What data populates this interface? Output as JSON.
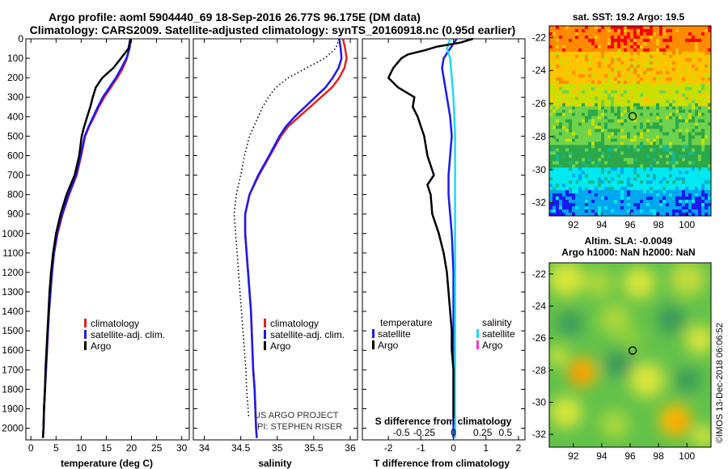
{
  "header": {
    "line1": "Argo profile: aoml 5904440_69 18-Sep-2016 26.77S 96.175E (DM data)",
    "line2": "Climatology: CARS2009. Satellite-adjusted climatology: synTS_20160918.nc (0.95d earlier)"
  },
  "depth_axis": {
    "ticks": [
      0,
      100,
      200,
      300,
      400,
      500,
      600,
      700,
      800,
      900,
      1000,
      1100,
      1200,
      1300,
      1400,
      1500,
      1600,
      1700,
      1800,
      1900,
      2000
    ],
    "range": [
      0,
      2060
    ]
  },
  "colors": {
    "climatology": "#e8201e",
    "satellite": "#1a1af0",
    "argo": "#000000",
    "satellite_sal": "#22d8f0",
    "argo_sal": "#ff33cc"
  },
  "chart_data": [
    {
      "type": "line",
      "name": "temperature",
      "xlabel": "temperature (deg C)",
      "ylabel": "",
      "xlim": [
        -1,
        31.5
      ],
      "ylim": [
        2060,
        0
      ],
      "xticks": [
        0,
        5,
        10,
        15,
        20,
        25,
        30
      ],
      "legend": [
        "climatology",
        "satellite-adj. clim.",
        "Argo"
      ],
      "series": [
        {
          "name": "climatology",
          "role": "climatology",
          "points": [
            [
              19.7,
              0
            ],
            [
              19.6,
              50
            ],
            [
              19.1,
              100
            ],
            [
              18.3,
              150
            ],
            [
              17.2,
              200
            ],
            [
              15.9,
              250
            ],
            [
              14.6,
              300
            ],
            [
              13.5,
              350
            ],
            [
              12.6,
              400
            ],
            [
              11.6,
              450
            ],
            [
              10.8,
              500
            ],
            [
              10.0,
              600
            ],
            [
              9.1,
              700
            ],
            [
              7.6,
              800
            ],
            [
              6.3,
              900
            ],
            [
              5.3,
              1000
            ],
            [
              4.6,
              1100
            ],
            [
              4.2,
              1200
            ],
            [
              3.9,
              1300
            ],
            [
              3.6,
              1400
            ],
            [
              3.4,
              1500
            ],
            [
              3.2,
              1600
            ],
            [
              3.0,
              1700
            ],
            [
              2.8,
              1800
            ],
            [
              2.6,
              1900
            ],
            [
              2.5,
              2000
            ],
            [
              2.4,
              2050
            ]
          ]
        },
        {
          "name": "satellite-adj. clim.",
          "role": "satellite",
          "points": [
            [
              19.9,
              0
            ],
            [
              19.6,
              50
            ],
            [
              19.0,
              100
            ],
            [
              18.0,
              150
            ],
            [
              16.9,
              200
            ],
            [
              15.6,
              250
            ],
            [
              14.3,
              300
            ],
            [
              13.3,
              350
            ],
            [
              12.4,
              400
            ],
            [
              11.5,
              450
            ],
            [
              10.7,
              500
            ],
            [
              9.9,
              600
            ],
            [
              9.0,
              700
            ],
            [
              7.5,
              800
            ],
            [
              6.2,
              900
            ],
            [
              5.2,
              1000
            ],
            [
              4.6,
              1100
            ],
            [
              4.2,
              1200
            ],
            [
              3.9,
              1300
            ],
            [
              3.6,
              1400
            ],
            [
              3.4,
              1500
            ],
            [
              3.2,
              1600
            ],
            [
              3.0,
              1700
            ],
            [
              2.8,
              1800
            ],
            [
              2.6,
              1900
            ],
            [
              2.5,
              2000
            ],
            [
              2.4,
              2050
            ]
          ]
        },
        {
          "name": "Argo",
          "role": "argo",
          "points": [
            [
              19.8,
              0
            ],
            [
              19.4,
              50
            ],
            [
              17.9,
              100
            ],
            [
              16.4,
              150
            ],
            [
              14.2,
              200
            ],
            [
              12.9,
              250
            ],
            [
              12.3,
              300
            ],
            [
              11.8,
              350
            ],
            [
              11.2,
              400
            ],
            [
              10.6,
              450
            ],
            [
              10.1,
              500
            ],
            [
              9.6,
              600
            ],
            [
              8.7,
              700
            ],
            [
              7.1,
              800
            ],
            [
              5.9,
              900
            ],
            [
              5.0,
              1000
            ],
            [
              4.4,
              1100
            ],
            [
              4.0,
              1200
            ],
            [
              3.7,
              1300
            ],
            [
              3.5,
              1400
            ],
            [
              3.3,
              1500
            ],
            [
              3.1,
              1600
            ],
            [
              2.9,
              1700
            ],
            [
              2.8,
              1800
            ],
            [
              2.6,
              1900
            ],
            [
              2.5,
              2000
            ],
            [
              2.4,
              2050
            ]
          ]
        }
      ]
    },
    {
      "type": "line",
      "name": "salinity",
      "xlabel": "salinity",
      "ylabel": "",
      "xlim": [
        33.85,
        36.1
      ],
      "ylim": [
        2060,
        0
      ],
      "xticks": [
        34,
        34.5,
        35,
        35.5,
        36
      ],
      "legend": [
        "climatology",
        "satellite-adj. clim.",
        "Argo"
      ],
      "series": [
        {
          "name": "climatology",
          "role": "climatology",
          "points": [
            [
              35.9,
              0
            ],
            [
              35.93,
              50
            ],
            [
              35.95,
              100
            ],
            [
              35.92,
              150
            ],
            [
              35.85,
              200
            ],
            [
              35.75,
              250
            ],
            [
              35.6,
              300
            ],
            [
              35.45,
              350
            ],
            [
              35.3,
              400
            ],
            [
              35.15,
              450
            ],
            [
              35.05,
              500
            ],
            [
              34.9,
              600
            ],
            [
              34.75,
              700
            ],
            [
              34.62,
              800
            ],
            [
              34.56,
              900
            ],
            [
              34.56,
              1000
            ],
            [
              34.58,
              1100
            ],
            [
              34.6,
              1200
            ],
            [
              34.62,
              1300
            ],
            [
              34.64,
              1400
            ],
            [
              34.65,
              1500
            ],
            [
              34.66,
              1600
            ],
            [
              34.67,
              1700
            ],
            [
              34.69,
              1800
            ],
            [
              34.7,
              1900
            ],
            [
              34.71,
              2000
            ],
            [
              34.72,
              2050
            ]
          ]
        },
        {
          "name": "satellite-adj. clim.",
          "role": "satellite",
          "points": [
            [
              35.85,
              0
            ],
            [
              35.87,
              50
            ],
            [
              35.88,
              100
            ],
            [
              35.84,
              150
            ],
            [
              35.76,
              200
            ],
            [
              35.66,
              250
            ],
            [
              35.52,
              300
            ],
            [
              35.38,
              350
            ],
            [
              35.24,
              400
            ],
            [
              35.12,
              450
            ],
            [
              35.03,
              500
            ],
            [
              34.89,
              600
            ],
            [
              34.74,
              700
            ],
            [
              34.62,
              800
            ],
            [
              34.56,
              900
            ],
            [
              34.56,
              1000
            ],
            [
              34.58,
              1100
            ],
            [
              34.6,
              1200
            ],
            [
              34.62,
              1300
            ],
            [
              34.64,
              1400
            ],
            [
              34.65,
              1500
            ],
            [
              34.66,
              1600
            ],
            [
              34.67,
              1700
            ],
            [
              34.69,
              1800
            ],
            [
              34.7,
              1900
            ],
            [
              34.71,
              2000
            ],
            [
              34.72,
              2050
            ]
          ]
        },
        {
          "name": "Argo",
          "role": "argo",
          "points": [
            [
              35.85,
              0
            ],
            [
              35.8,
              50
            ],
            [
              35.65,
              100
            ],
            [
              35.4,
              150
            ],
            [
              35.15,
              200
            ],
            [
              34.98,
              250
            ],
            [
              34.88,
              300
            ],
            [
              34.8,
              350
            ],
            [
              34.74,
              400
            ],
            [
              34.68,
              450
            ],
            [
              34.62,
              500
            ],
            [
              34.55,
              600
            ],
            [
              34.5,
              700
            ],
            [
              34.44,
              800
            ],
            [
              34.41,
              900
            ],
            [
              34.43,
              1000
            ],
            [
              34.45,
              1100
            ],
            [
              34.47,
              1200
            ],
            [
              34.49,
              1300
            ],
            [
              34.51,
              1400
            ],
            [
              34.53,
              1500
            ],
            [
              34.55,
              1600
            ],
            [
              34.57,
              1700
            ],
            [
              34.58,
              1800
            ],
            [
              34.6,
              1900
            ],
            [
              34.61,
              1950
            ]
          ]
        }
      ]
    },
    {
      "type": "line",
      "name": "difference",
      "xlabel": "T difference from climatology",
      "xlabel_top": "S difference from climatology",
      "ylabel": "",
      "xlim": [
        -2.8,
        2.2
      ],
      "ylim": [
        2060,
        0
      ],
      "xticks": [
        -2,
        -1,
        0,
        1,
        2
      ],
      "sal_ticks_label": [
        "-0.5",
        "-0.25",
        "0",
        "0.25",
        "0.5"
      ],
      "sal_ticks_pos": [
        -1.6,
        -0.9,
        0,
        0.9,
        1.6
      ],
      "legend_temp_title": "temperature",
      "legend_sal_title": "salinity",
      "legend_temp": [
        "satellite",
        "Argo"
      ],
      "legend_sal": [
        "satellite",
        "Argo"
      ],
      "series": [
        {
          "name": "satellite",
          "role": "satellite",
          "points": [
            [
              0.1,
              0
            ],
            [
              -0.1,
              50
            ],
            [
              -0.3,
              100
            ],
            [
              -0.35,
              150
            ],
            [
              -0.3,
              200
            ],
            [
              -0.2,
              300
            ],
            [
              -0.1,
              400
            ],
            [
              -0.05,
              500
            ],
            [
              -0.1,
              600
            ],
            [
              -0.15,
              700
            ],
            [
              -0.15,
              800
            ],
            [
              -0.1,
              900
            ],
            [
              -0.05,
              1000
            ],
            [
              0,
              1200
            ],
            [
              0,
              1500
            ],
            [
              0,
              2000
            ],
            [
              0,
              2050
            ]
          ]
        },
        {
          "name": "satellite (salinity)",
          "role": "satellite_sal",
          "points": [
            [
              -0.1,
              0
            ],
            [
              -0.2,
              50
            ],
            [
              -0.1,
              100
            ],
            [
              -0.05,
              200
            ],
            [
              0,
              300
            ],
            [
              0.05,
              500
            ],
            [
              0.05,
              800
            ],
            [
              0.05,
              1200
            ],
            [
              0.05,
              2000
            ],
            [
              0.05,
              2050
            ]
          ]
        },
        {
          "name": "Argo",
          "role": "argo",
          "points": [
            [
              0.6,
              0
            ],
            [
              0.2,
              20
            ],
            [
              -0.5,
              40
            ],
            [
              -0.9,
              60
            ],
            [
              -1.4,
              80
            ],
            [
              -1.6,
              100
            ],
            [
              -1.85,
              150
            ],
            [
              -2.0,
              200
            ],
            [
              -1.7,
              250
            ],
            [
              -1.2,
              300
            ],
            [
              -1.25,
              350
            ],
            [
              -1.1,
              400
            ],
            [
              -0.9,
              500
            ],
            [
              -0.8,
              600
            ],
            [
              -0.6,
              700
            ],
            [
              -0.8,
              750
            ],
            [
              -0.7,
              800
            ],
            [
              -0.65,
              900
            ],
            [
              -0.45,
              1000
            ],
            [
              -0.3,
              1100
            ],
            [
              -0.2,
              1200
            ],
            [
              -0.15,
              1300
            ],
            [
              -0.1,
              1400
            ],
            [
              -0.05,
              1500
            ],
            [
              -0.05,
              1600
            ],
            [
              0,
              1700
            ],
            [
              0,
              1800
            ],
            [
              0,
              1900
            ],
            [
              0,
              1950
            ]
          ]
        }
      ]
    },
    {
      "type": "heatmap",
      "name": "sst-map",
      "title": "sat. SST: 19.2  Argo: 19.5",
      "xticks": [
        92,
        94,
        96,
        98,
        100
      ],
      "yticks": [
        -22,
        -24,
        -26,
        -28,
        -30,
        -32
      ],
      "xlim": [
        90.3,
        101.7
      ],
      "ylim": [
        -32.8,
        -21.3
      ],
      "marker": [
        96.175,
        -26.77
      ]
    },
    {
      "type": "heatmap",
      "name": "sla-map",
      "title": "Altim. SLA: -0.0049",
      "subtitle": "Argo h1000: NaN h2000: NaN",
      "xticks": [
        92,
        94,
        96,
        98,
        100
      ],
      "yticks": [
        -22,
        -24,
        -26,
        -28,
        -30,
        -32
      ],
      "xlim": [
        90.3,
        101.7
      ],
      "ylim": [
        -32.8,
        -21.3
      ],
      "marker": [
        96.175,
        -26.77
      ]
    }
  ],
  "credits": {
    "line1": "US ARGO PROJECT",
    "line2": "PI: STEPHEN RISER",
    "side": "©IMOS 13-Dec-2018 06:06:52"
  }
}
